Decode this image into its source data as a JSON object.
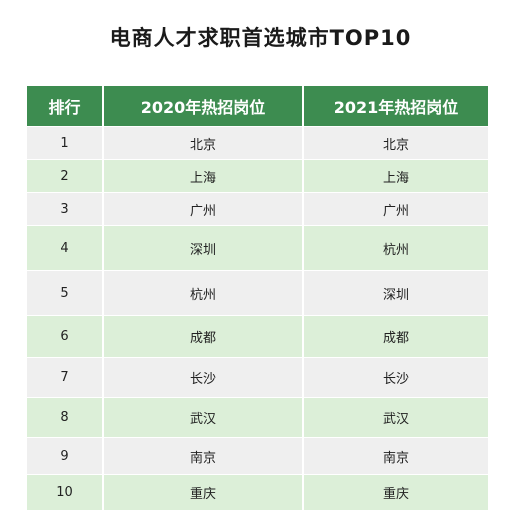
{
  "chart_data": {
    "type": "table",
    "title": "电商人才求职首选城市TOP10",
    "columns": [
      "排行",
      "2020年热招岗位",
      "2021年热招岗位"
    ],
    "rows": [
      [
        "1",
        "北京",
        "北京"
      ],
      [
        "2",
        "上海",
        "上海"
      ],
      [
        "3",
        "广州",
        "广州"
      ],
      [
        "4",
        "深圳",
        "杭州"
      ],
      [
        "5",
        "杭州",
        "深圳"
      ],
      [
        "6",
        "成都",
        "成都"
      ],
      [
        "7",
        "长沙",
        "长沙"
      ],
      [
        "8",
        "武汉",
        "武汉"
      ],
      [
        "9",
        "南京",
        "南京"
      ],
      [
        "10",
        "重庆",
        "重庆"
      ]
    ],
    "colors": {
      "header_bg": "#3d8c50",
      "row_odd": "#efefef",
      "row_even": "#dcefd8"
    }
  }
}
